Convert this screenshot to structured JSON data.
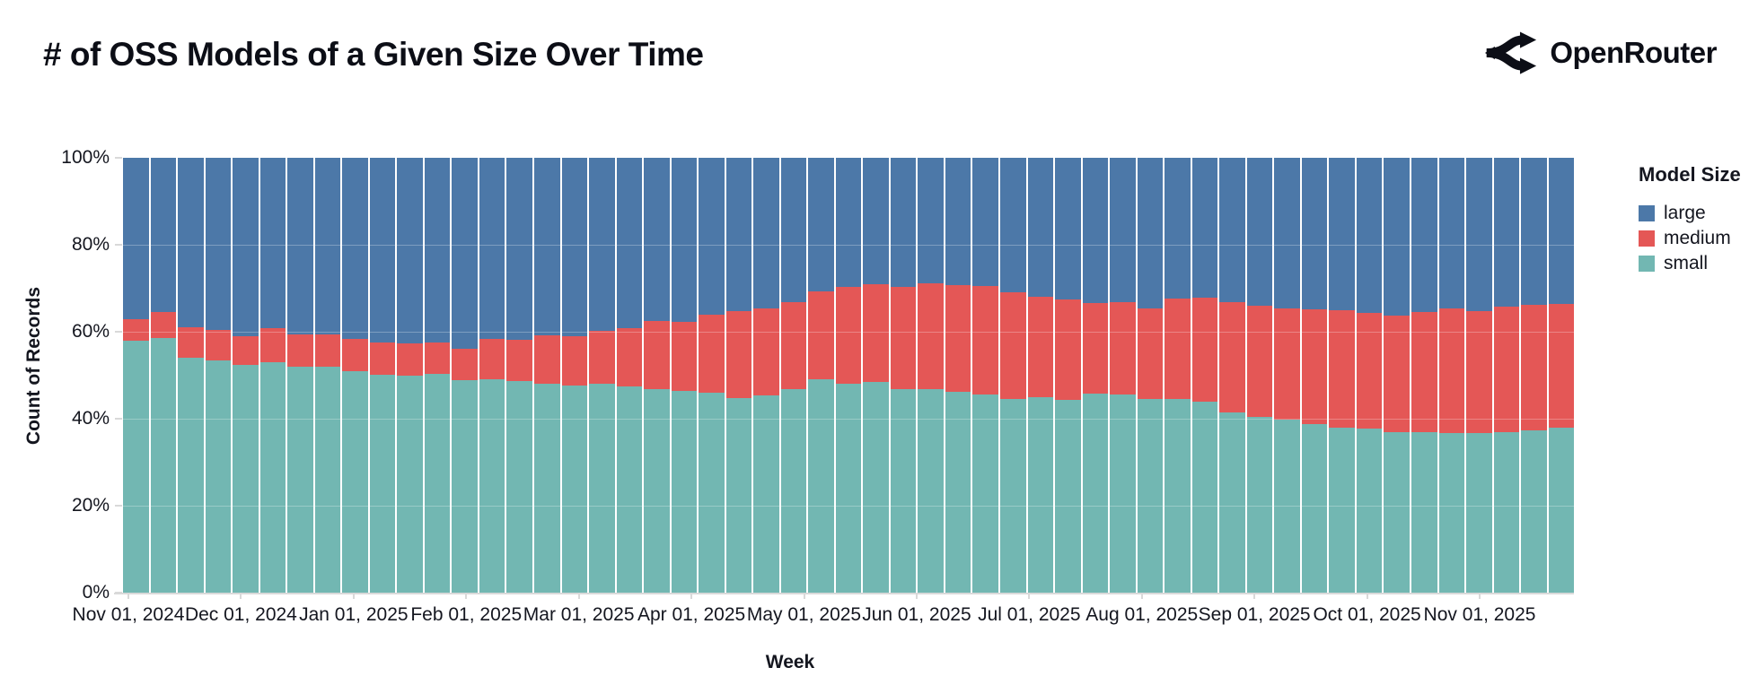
{
  "header": {
    "title": "# of OSS Models of a Given Size Over Time",
    "brand": "OpenRouter"
  },
  "chart_data": {
    "type": "bar",
    "stacked": true,
    "normalized_percent": true,
    "title": "# of OSS Models of a Given Size Over Time",
    "xlabel": "Week",
    "ylabel": "Count of Records",
    "legend_title": "Model Size",
    "legend_position": "right",
    "grid": true,
    "ylim": [
      0,
      100
    ],
    "y_tick_labels": [
      "0%",
      "20%",
      "40%",
      "60%",
      "80%",
      "100%"
    ],
    "x_tick_labels": [
      "Nov 01, 2024",
      "Dec 01, 2024",
      "Jan 01, 2025",
      "Feb 01, 2025",
      "Mar 01, 2025",
      "Apr 01, 2025",
      "May 01, 2025",
      "Jun 01, 2025",
      "Jul 01, 2025",
      "Aug 01, 2025",
      "Sep 01, 2025",
      "Oct 01, 2025",
      "Nov 01, 2025"
    ],
    "weeks": [
      "2024-10-28",
      "2024-11-04",
      "2024-11-11",
      "2024-11-18",
      "2024-11-25",
      "2024-12-02",
      "2024-12-09",
      "2024-12-16",
      "2024-12-23",
      "2024-12-30",
      "2025-01-06",
      "2025-01-13",
      "2025-01-20",
      "2025-01-27",
      "2025-02-03",
      "2025-02-10",
      "2025-02-17",
      "2025-02-24",
      "2025-03-03",
      "2025-03-10",
      "2025-03-17",
      "2025-03-24",
      "2025-03-31",
      "2025-04-07",
      "2025-04-14",
      "2025-04-21",
      "2025-04-28",
      "2025-05-05",
      "2025-05-12",
      "2025-05-19",
      "2025-05-26",
      "2025-06-02",
      "2025-06-09",
      "2025-06-16",
      "2025-06-23",
      "2025-06-30",
      "2025-07-07",
      "2025-07-14",
      "2025-07-21",
      "2025-07-28",
      "2025-08-04",
      "2025-08-11",
      "2025-08-18",
      "2025-08-25",
      "2025-09-01",
      "2025-09-08",
      "2025-09-15",
      "2025-09-22",
      "2025-09-29",
      "2025-10-06",
      "2025-10-13",
      "2025-10-20",
      "2025-10-27"
    ],
    "series": [
      {
        "name": "large",
        "color": "#4c78a8",
        "values": [
          37.2,
          35.4,
          39.0,
          39.6,
          41.1,
          39.2,
          40.7,
          40.6,
          41.7,
          42.5,
          42.7,
          42.4,
          43.9,
          41.6,
          41.9,
          40.9,
          41.0,
          39.8,
          39.1,
          37.5,
          37.7,
          36.0,
          35.2,
          34.6,
          33.1,
          30.7,
          29.7,
          29.1,
          29.7,
          28.9,
          29.2,
          29.5,
          30.9,
          32.0,
          32.6,
          33.3,
          33.1,
          34.6,
          32.4,
          32.1,
          33.1,
          34.0,
          34.6,
          34.9,
          35.0,
          35.7,
          36.2,
          35.5,
          34.7,
          35.2,
          34.2,
          33.8,
          33.7
        ]
      },
      {
        "name": "medium",
        "color": "#e45756",
        "values": [
          4.8,
          6.1,
          7.0,
          6.9,
          6.5,
          7.8,
          7.3,
          7.5,
          7.3,
          7.3,
          7.5,
          7.3,
          7.3,
          9.4,
          9.5,
          11.0,
          11.4,
          12.1,
          13.5,
          15.6,
          15.9,
          18.0,
          20.0,
          20.1,
          20.1,
          20.2,
          22.2,
          22.5,
          23.4,
          24.4,
          24.6,
          25.0,
          24.6,
          23.0,
          23.0,
          21.0,
          21.4,
          20.9,
          23.1,
          23.9,
          25.4,
          25.5,
          25.7,
          26.3,
          27.0,
          26.6,
          26.9,
          27.6,
          28.5,
          28.0,
          28.9,
          28.8,
          28.3
        ]
      },
      {
        "name": "small",
        "color": "#72b7b2",
        "values": [
          58.0,
          58.5,
          54.0,
          53.5,
          52.4,
          53.0,
          52.0,
          51.9,
          51.0,
          50.2,
          49.8,
          50.3,
          48.8,
          49.0,
          48.6,
          48.1,
          47.6,
          48.1,
          47.4,
          46.9,
          46.4,
          46.0,
          44.8,
          45.3,
          46.8,
          49.1,
          48.1,
          48.4,
          46.9,
          46.7,
          46.2,
          45.5,
          44.5,
          45.0,
          44.4,
          45.7,
          45.5,
          44.5,
          44.5,
          44.0,
          41.5,
          40.5,
          39.7,
          38.8,
          38.0,
          37.7,
          36.9,
          36.9,
          36.8,
          36.8,
          36.9,
          37.4,
          38.0
        ]
      }
    ]
  }
}
